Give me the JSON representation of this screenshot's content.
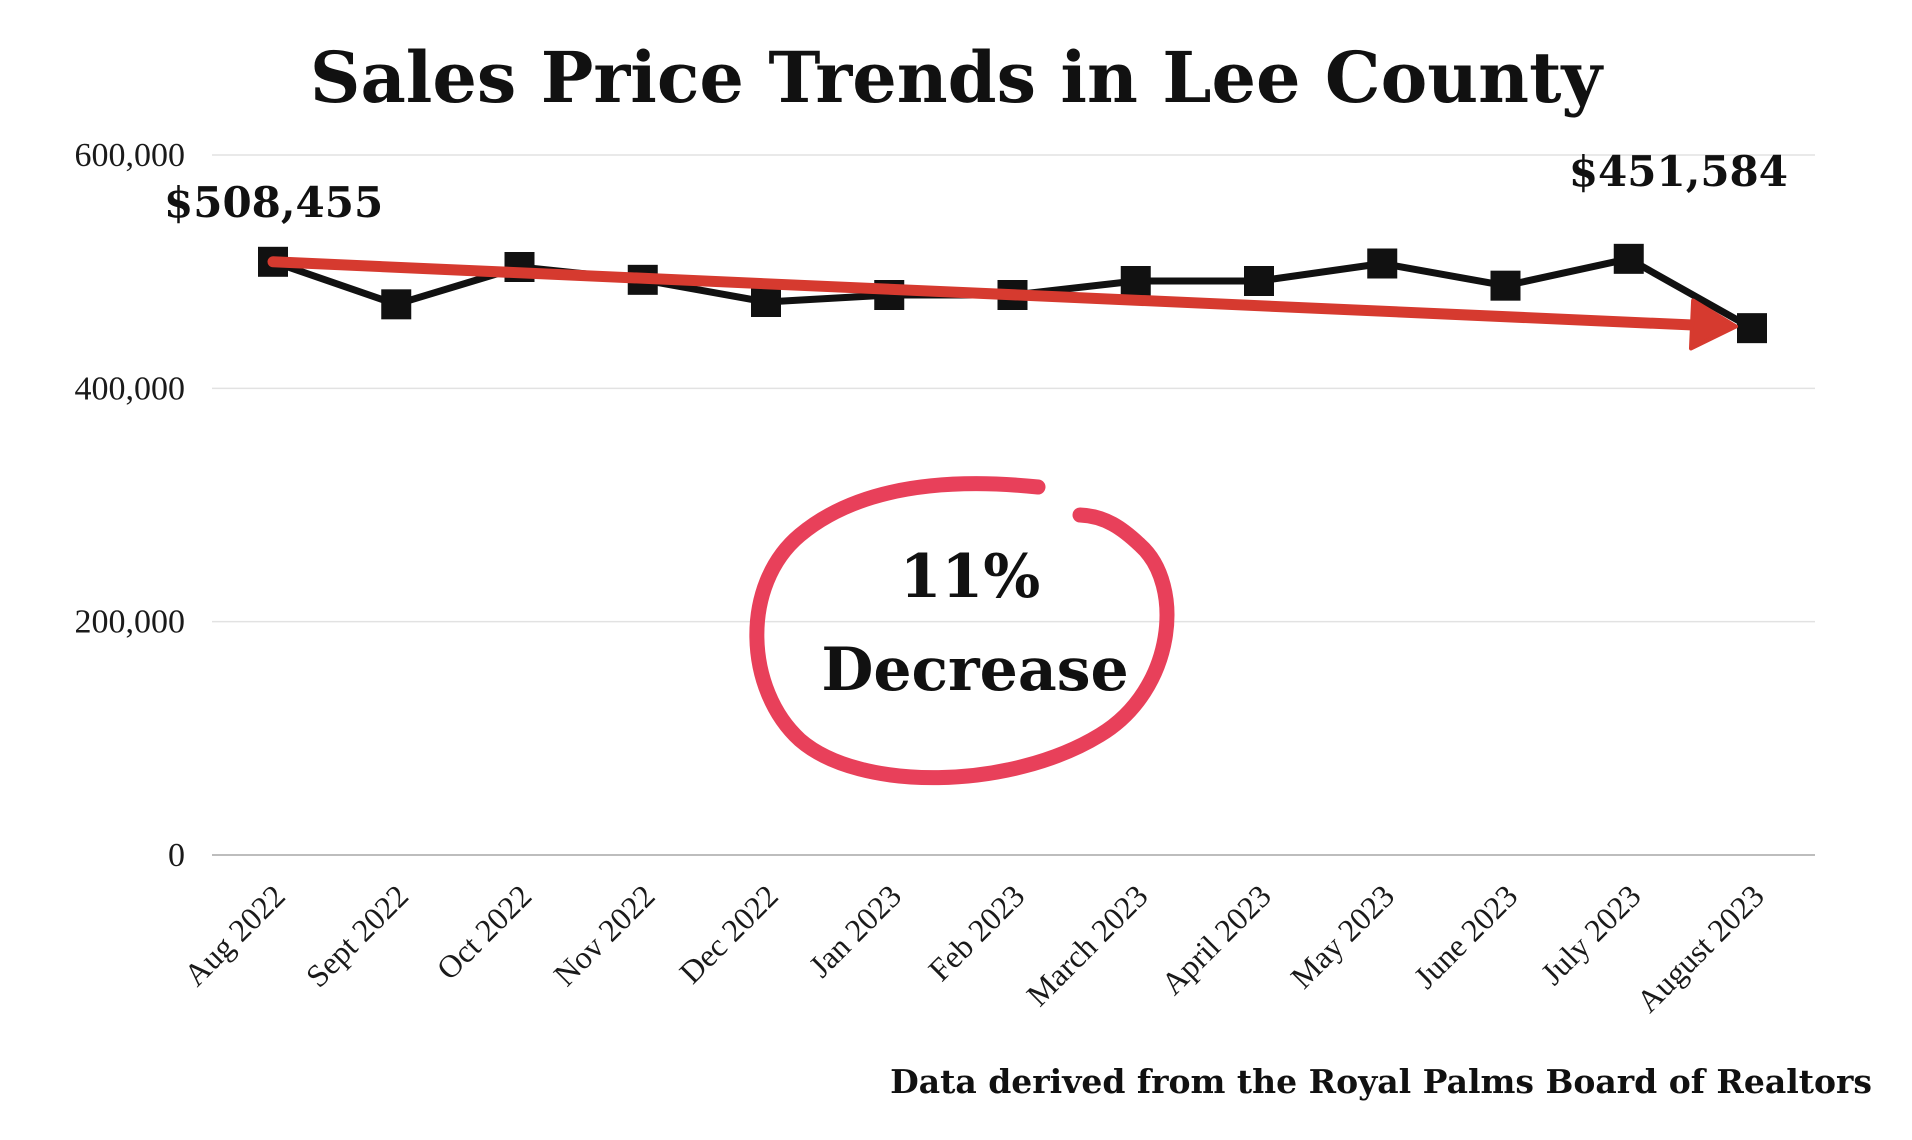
{
  "chart_data": {
    "type": "line",
    "title": "Sales Price Trends in Lee County",
    "categories": [
      "Aug 2022",
      "Sept 2022",
      "Oct 2022",
      "Nov 2022",
      "Dec 2022",
      "Jan 2023",
      "Feb 2023",
      "March 2023",
      "April 2023",
      "May 2023",
      "June 2023",
      "July 2023",
      "August 2023"
    ],
    "series": [
      {
        "values": [
          508455,
          472000,
          504000,
          493000,
          474000,
          480000,
          480000,
          492000,
          492000,
          507000,
          488000,
          511000,
          451584
        ],
        "color": "#111111",
        "marker": "square"
      }
    ],
    "trend_line": {
      "from": 508455,
      "to": 451584,
      "color": "#d63a2f"
    },
    "ylim": [
      0,
      600000
    ],
    "yticks": [
      "600,000",
      "400,000",
      "200,000",
      "0"
    ],
    "ytick_values": [
      600000,
      400000,
      200000,
      0
    ],
    "grid": true,
    "annotations": {
      "start_label": "$508,455",
      "end_label": "$451,584",
      "badge_line1": "11%",
      "badge_line2": "Decrease",
      "badge_color": "#e8405a"
    },
    "source_note": "Data derived from the Royal Palms Board of Realtors"
  }
}
